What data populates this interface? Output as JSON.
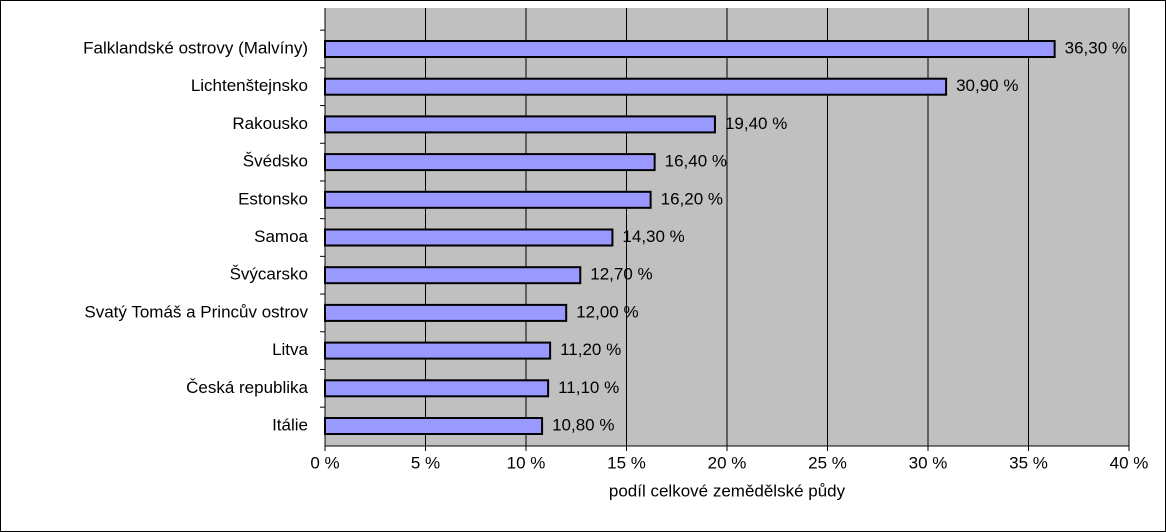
{
  "chart_data": {
    "type": "bar",
    "orientation": "horizontal",
    "xlabel": "podíl celkové zemědělské půdy",
    "categories": [
      "Falklandské ostrovy (Malvíny)",
      "Lichtenštejnsko",
      "Rakousko",
      "Švédsko",
      "Estonsko",
      "Samoa",
      "Švýcarsko",
      "Svatý Tomáš a Princův ostrov",
      "Litva",
      "Česká republika",
      "Itálie"
    ],
    "values": [
      36.3,
      30.9,
      19.4,
      16.4,
      16.2,
      14.3,
      12.7,
      12.0,
      11.2,
      11.1,
      10.8
    ],
    "value_labels": [
      "36,30 %",
      "30,90 %",
      "19,40 %",
      "16,40 %",
      "16,20 %",
      "14,30 %",
      "12,70 %",
      "12,00 %",
      "11,20 %",
      "11,10 %",
      "10,80 %"
    ],
    "color": "#9999ff",
    "xlim": [
      0,
      40
    ],
    "xticks": [
      {
        "value": 0,
        "label": "0 %"
      },
      {
        "value": 5,
        "label": "5 %"
      },
      {
        "value": 10,
        "label": "10 %"
      },
      {
        "value": 15,
        "label": "15 %"
      },
      {
        "value": 20,
        "label": "20 %"
      },
      {
        "value": 25,
        "label": "25 %"
      },
      {
        "value": 30,
        "label": "30 %"
      },
      {
        "value": 35,
        "label": "35 %"
      },
      {
        "value": 40,
        "label": "40 %"
      }
    ],
    "grid": true
  }
}
